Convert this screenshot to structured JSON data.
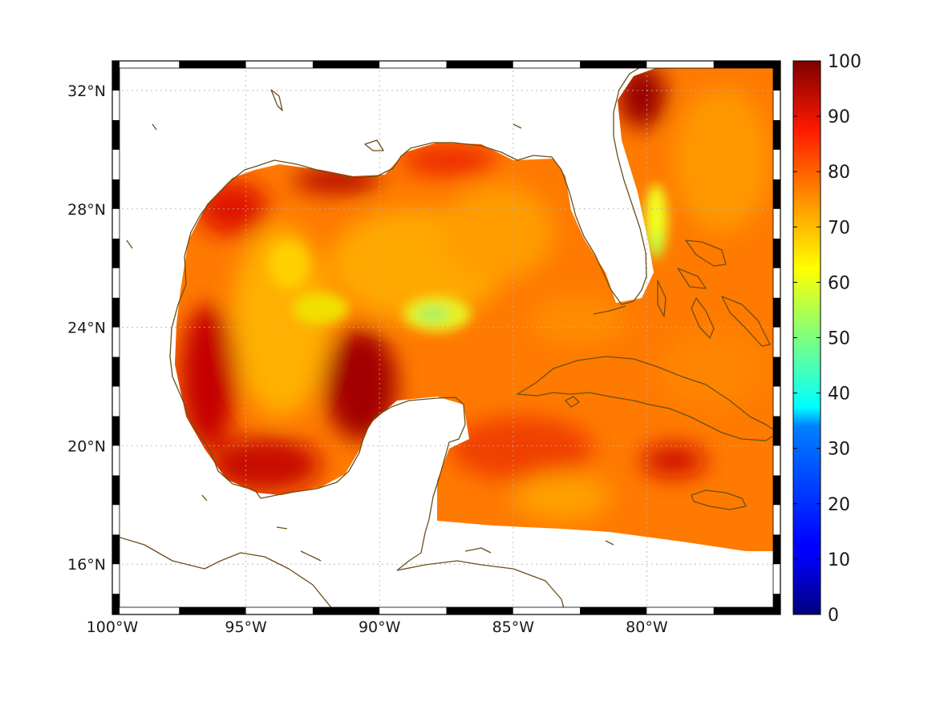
{
  "map": {
    "lon_range": [
      -100,
      -75
    ],
    "lat_range": [
      14.3,
      33
    ],
    "lon_ticks": [
      {
        "value": -100,
        "label": "100°W"
      },
      {
        "value": -95,
        "label": "95°W"
      },
      {
        "value": -90,
        "label": "90°W"
      },
      {
        "value": -85,
        "label": "85°W"
      },
      {
        "value": -80,
        "label": "80°W"
      }
    ],
    "lat_ticks": [
      {
        "value": 16,
        "label": "16°N"
      },
      {
        "value": 20,
        "label": "20°N"
      },
      {
        "value": 24,
        "label": "24°N"
      },
      {
        "value": 28,
        "label": "28°N"
      },
      {
        "value": 32,
        "label": "32°N"
      }
    ],
    "grid": true,
    "coastline_color": "#6b4e16",
    "frame": "black-white checker border",
    "colormap": "jet",
    "field_description_range": [
      55,
      98
    ]
  },
  "colorbar": {
    "min": 0,
    "max": 100,
    "ticks": [
      {
        "value": 0,
        "label": "0"
      },
      {
        "value": 10,
        "label": "10"
      },
      {
        "value": 20,
        "label": "20"
      },
      {
        "value": 30,
        "label": "30"
      },
      {
        "value": 40,
        "label": "40"
      },
      {
        "value": 50,
        "label": "50"
      },
      {
        "value": 60,
        "label": "60"
      },
      {
        "value": 70,
        "label": "70"
      },
      {
        "value": 80,
        "label": "80"
      },
      {
        "value": 90,
        "label": "90"
      },
      {
        "value": 100,
        "label": "100"
      }
    ],
    "placement": "right"
  }
}
